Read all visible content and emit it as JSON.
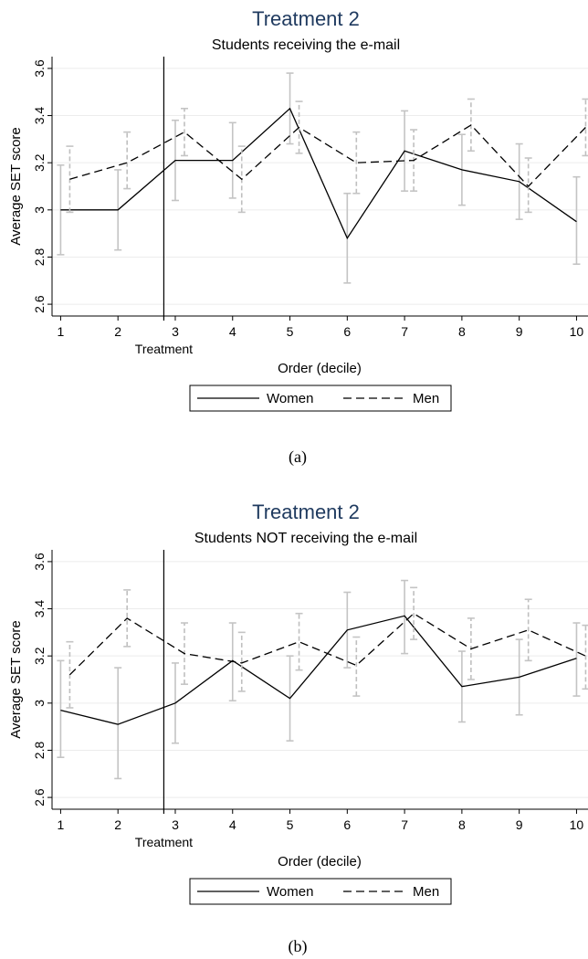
{
  "chart_data": [
    {
      "type": "line",
      "title": "Treatment 2",
      "subtitle": "Students receiving the e-mail",
      "xlabel": "Order (decile)",
      "ylabel": "Average SET score",
      "ylim": [
        2.55,
        3.65
      ],
      "xlim": [
        0.85,
        10.2
      ],
      "x": [
        1,
        2,
        3,
        4,
        5,
        6,
        7,
        8,
        9,
        10
      ],
      "y_ticks": [
        "2.6",
        "2.8",
        "3",
        "3.2",
        "3.4",
        "3.6"
      ],
      "treatment_line_x": 2.8,
      "treatment_label": "Treatment",
      "caption": "(a)",
      "grid": true,
      "legend_position": "bottom",
      "series": [
        {
          "name": "Women",
          "style": "solid",
          "values": [
            3.0,
            3.0,
            3.21,
            3.21,
            3.43,
            2.88,
            3.25,
            3.17,
            3.12,
            2.95
          ],
          "ci_low": [
            2.81,
            2.83,
            3.04,
            3.05,
            3.28,
            2.69,
            3.08,
            3.02,
            2.96,
            2.77
          ],
          "ci_high": [
            3.19,
            3.17,
            3.38,
            3.37,
            3.58,
            3.07,
            3.42,
            3.32,
            3.28,
            3.14
          ]
        },
        {
          "name": "Men",
          "style": "dashed",
          "values": [
            3.13,
            3.2,
            3.33,
            3.13,
            3.35,
            3.2,
            3.21,
            3.36,
            3.1,
            3.35
          ],
          "ci_low": [
            2.99,
            3.09,
            3.23,
            2.99,
            3.24,
            3.07,
            3.08,
            3.25,
            2.99,
            3.23
          ],
          "ci_high": [
            3.27,
            3.33,
            3.43,
            3.27,
            3.46,
            3.33,
            3.34,
            3.47,
            3.22,
            3.47
          ]
        }
      ]
    },
    {
      "type": "line",
      "title": "Treatment 2",
      "subtitle": "Students NOT receiving the e-mail",
      "xlabel": "Order (decile)",
      "ylabel": "Average SET score",
      "ylim": [
        2.55,
        3.65
      ],
      "xlim": [
        0.85,
        10.2
      ],
      "x": [
        1,
        2,
        3,
        4,
        5,
        6,
        7,
        8,
        9,
        10
      ],
      "y_ticks": [
        "2.6",
        "2.8",
        "3",
        "3.2",
        "3.4",
        "3.6"
      ],
      "treatment_line_x": 2.8,
      "treatment_label": "Treatment",
      "caption": "(b)",
      "grid": true,
      "legend_position": "bottom",
      "series": [
        {
          "name": "Women",
          "style": "solid",
          "values": [
            2.97,
            2.91,
            3.0,
            3.18,
            3.02,
            3.31,
            3.37,
            3.07,
            3.11,
            3.19
          ],
          "ci_low": [
            2.77,
            2.68,
            2.83,
            3.01,
            2.84,
            3.15,
            3.21,
            2.92,
            2.95,
            3.03
          ],
          "ci_high": [
            3.18,
            3.15,
            3.17,
            3.34,
            3.2,
            3.47,
            3.52,
            3.22,
            3.27,
            3.34
          ]
        },
        {
          "name": "Men",
          "style": "dashed",
          "values": [
            3.12,
            3.36,
            3.21,
            3.17,
            3.26,
            3.16,
            3.38,
            3.23,
            3.31,
            3.2
          ],
          "ci_low": [
            2.98,
            3.24,
            3.08,
            3.05,
            3.14,
            3.03,
            3.27,
            3.1,
            3.18,
            3.06
          ],
          "ci_high": [
            3.26,
            3.48,
            3.34,
            3.3,
            3.38,
            3.28,
            3.49,
            3.36,
            3.44,
            3.33
          ]
        }
      ]
    }
  ]
}
